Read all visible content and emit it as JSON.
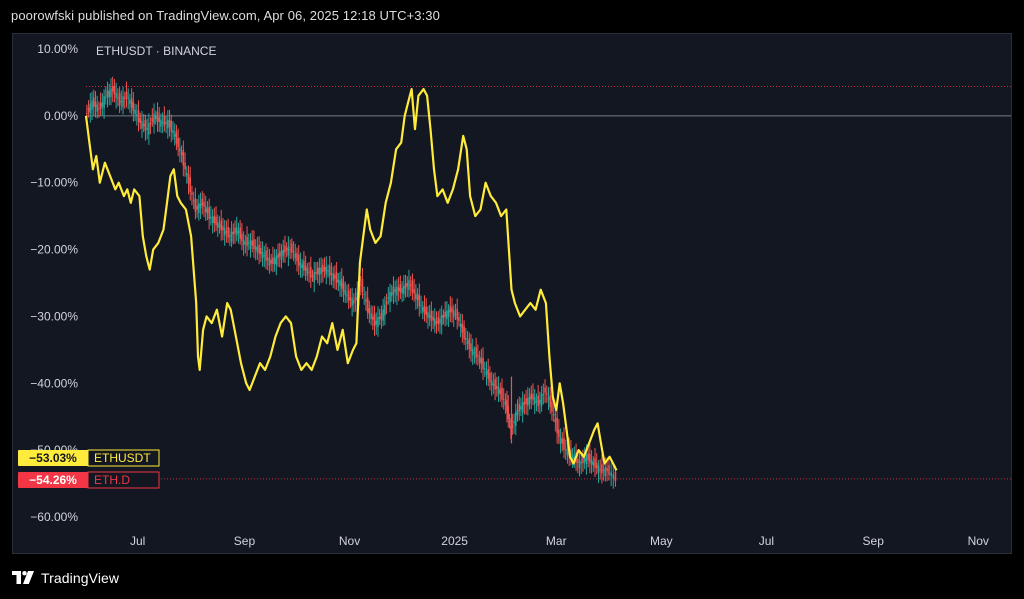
{
  "header": {
    "published_line": "poorowfski published on TradingView.com, Apr 06, 2025 12:18 UTC+3:30"
  },
  "footer": {
    "brand": "TradingView",
    "logo_icon": "tradingview-logo-icon"
  },
  "chart_data": {
    "type": "line",
    "title": "ETHUSDT · BINANCE",
    "xlabel": "",
    "ylabel": "",
    "y_unit": "percent change",
    "ylim": [
      -61,
      11
    ],
    "y_ticks": [
      "10.00%",
      "0.00%",
      "−10.00%",
      "−20.00%",
      "−30.00%",
      "−40.00%",
      "−50.00%",
      "−60.00%"
    ],
    "y_tick_values": [
      10,
      0,
      -10,
      -20,
      -30,
      -40,
      -50,
      -60
    ],
    "x_ticks": [
      "Jul",
      "Sep",
      "Nov",
      "2025",
      "Mar",
      "May",
      "Jul",
      "Sep",
      "Nov"
    ],
    "x_tick_dates": [
      "2024-07-01",
      "2024-09-01",
      "2024-11-01",
      "2025-01-01",
      "2025-03-01",
      "2025-05-01",
      "2025-07-01",
      "2025-09-01",
      "2025-11-01"
    ],
    "xlim": [
      "2024-06-01",
      "2025-11-20"
    ],
    "zero_line": 0,
    "reference_line_top": 4.4,
    "reference_line_bottom": -54.3,
    "colors": {
      "background": "#131722",
      "axis_text": "#d1d4dc",
      "yellow": "#ffeb3b",
      "candle_up": "#26a69a",
      "candle_down": "#ef5350",
      "zero_line": "#787b86",
      "ref_line": "#f23645"
    },
    "series": [
      {
        "name": "ETHUSDT",
        "style": "line",
        "color": "#ffeb3b",
        "last_label": "−53.03%",
        "data": [
          [
            "2024-06-01",
            0
          ],
          [
            "2024-06-03",
            -4
          ],
          [
            "2024-06-05",
            -8
          ],
          [
            "2024-06-07",
            -6
          ],
          [
            "2024-06-09",
            -10
          ],
          [
            "2024-06-12",
            -7
          ],
          [
            "2024-06-15",
            -9
          ],
          [
            "2024-06-18",
            -11
          ],
          [
            "2024-06-20",
            -10
          ],
          [
            "2024-06-23",
            -12
          ],
          [
            "2024-06-25",
            -11
          ],
          [
            "2024-06-27",
            -13
          ],
          [
            "2024-06-29",
            -11
          ],
          [
            "2024-07-02",
            -12
          ],
          [
            "2024-07-04",
            -18
          ],
          [
            "2024-07-06",
            -21
          ],
          [
            "2024-07-08",
            -23
          ],
          [
            "2024-07-10",
            -20
          ],
          [
            "2024-07-13",
            -19
          ],
          [
            "2024-07-16",
            -17
          ],
          [
            "2024-07-18",
            -13
          ],
          [
            "2024-07-20",
            -9
          ],
          [
            "2024-07-22",
            -8
          ],
          [
            "2024-07-24",
            -12
          ],
          [
            "2024-07-26",
            -13
          ],
          [
            "2024-07-29",
            -14
          ],
          [
            "2024-08-01",
            -18
          ],
          [
            "2024-08-04",
            -28
          ],
          [
            "2024-08-05",
            -36
          ],
          [
            "2024-08-06",
            -38
          ],
          [
            "2024-08-08",
            -32
          ],
          [
            "2024-08-10",
            -30
          ],
          [
            "2024-08-13",
            -31
          ],
          [
            "2024-08-16",
            -29
          ],
          [
            "2024-08-19",
            -33
          ],
          [
            "2024-08-22",
            -28
          ],
          [
            "2024-08-24",
            -29
          ],
          [
            "2024-08-27",
            -33
          ],
          [
            "2024-08-30",
            -37
          ],
          [
            "2024-09-02",
            -40
          ],
          [
            "2024-09-04",
            -41
          ],
          [
            "2024-09-07",
            -39
          ],
          [
            "2024-09-10",
            -37
          ],
          [
            "2024-09-13",
            -38
          ],
          [
            "2024-09-16",
            -36
          ],
          [
            "2024-09-19",
            -33
          ],
          [
            "2024-09-22",
            -31
          ],
          [
            "2024-09-25",
            -30
          ],
          [
            "2024-09-28",
            -31
          ],
          [
            "2024-10-01",
            -36
          ],
          [
            "2024-10-04",
            -38
          ],
          [
            "2024-10-07",
            -37
          ],
          [
            "2024-10-10",
            -38
          ],
          [
            "2024-10-13",
            -36
          ],
          [
            "2024-10-16",
            -33
          ],
          [
            "2024-10-19",
            -34
          ],
          [
            "2024-10-22",
            -31
          ],
          [
            "2024-10-25",
            -35
          ],
          [
            "2024-10-28",
            -32
          ],
          [
            "2024-10-31",
            -37
          ],
          [
            "2024-11-03",
            -35
          ],
          [
            "2024-11-05",
            -34
          ],
          [
            "2024-11-07",
            -22
          ],
          [
            "2024-11-09",
            -18
          ],
          [
            "2024-11-11",
            -14
          ],
          [
            "2024-11-13",
            -17
          ],
          [
            "2024-11-16",
            -19
          ],
          [
            "2024-11-19",
            -18
          ],
          [
            "2024-11-22",
            -13
          ],
          [
            "2024-11-25",
            -10
          ],
          [
            "2024-11-28",
            -5
          ],
          [
            "2024-12-01",
            -4
          ],
          [
            "2024-12-03",
            0
          ],
          [
            "2024-12-05",
            2
          ],
          [
            "2024-12-07",
            4
          ],
          [
            "2024-12-09",
            -2
          ],
          [
            "2024-12-11",
            3
          ],
          [
            "2024-12-14",
            4
          ],
          [
            "2024-12-16",
            3
          ],
          [
            "2024-12-18",
            -2
          ],
          [
            "2024-12-20",
            -8
          ],
          [
            "2024-12-22",
            -12
          ],
          [
            "2024-12-25",
            -11
          ],
          [
            "2024-12-28",
            -13
          ],
          [
            "2024-12-31",
            -11
          ],
          [
            "2025-01-03",
            -8
          ],
          [
            "2025-01-06",
            -3
          ],
          [
            "2025-01-08",
            -5
          ],
          [
            "2025-01-10",
            -12
          ],
          [
            "2025-01-13",
            -15
          ],
          [
            "2025-01-16",
            -14
          ],
          [
            "2025-01-19",
            -10
          ],
          [
            "2025-01-22",
            -12
          ],
          [
            "2025-01-25",
            -13
          ],
          [
            "2025-01-28",
            -15
          ],
          [
            "2025-01-31",
            -14
          ],
          [
            "2025-02-03",
            -26
          ],
          [
            "2025-02-05",
            -28
          ],
          [
            "2025-02-08",
            -30
          ],
          [
            "2025-02-11",
            -29
          ],
          [
            "2025-02-14",
            -28
          ],
          [
            "2025-02-17",
            -29
          ],
          [
            "2025-02-20",
            -26
          ],
          [
            "2025-02-23",
            -28
          ],
          [
            "2025-02-25",
            -36
          ],
          [
            "2025-02-27",
            -42
          ],
          [
            "2025-03-01",
            -44
          ],
          [
            "2025-03-03",
            -40
          ],
          [
            "2025-03-05",
            -43
          ],
          [
            "2025-03-07",
            -47
          ],
          [
            "2025-03-09",
            -51
          ],
          [
            "2025-03-11",
            -52
          ],
          [
            "2025-03-14",
            -50
          ],
          [
            "2025-03-17",
            -51
          ],
          [
            "2025-03-20",
            -49
          ],
          [
            "2025-03-23",
            -47
          ],
          [
            "2025-03-25",
            -46
          ],
          [
            "2025-03-27",
            -49
          ],
          [
            "2025-03-29",
            -52
          ],
          [
            "2025-04-01",
            -51
          ],
          [
            "2025-04-03",
            -52
          ],
          [
            "2025-04-05",
            -53.03
          ]
        ]
      },
      {
        "name": "ETH.D",
        "style": "candles",
        "last_label": "−54.26%",
        "data": [
          [
            "2024-06-01",
            0
          ],
          [
            "2024-06-05",
            2
          ],
          [
            "2024-06-09",
            1
          ],
          [
            "2024-06-13",
            3
          ],
          [
            "2024-06-17",
            4
          ],
          [
            "2024-06-21",
            2
          ],
          [
            "2024-06-25",
            3
          ],
          [
            "2024-06-29",
            1
          ],
          [
            "2024-07-03",
            -1
          ],
          [
            "2024-07-07",
            -2
          ],
          [
            "2024-07-11",
            0
          ],
          [
            "2024-07-15",
            -1
          ],
          [
            "2024-07-19",
            -1
          ],
          [
            "2024-07-23",
            -3
          ],
          [
            "2024-07-27",
            -6
          ],
          [
            "2024-07-31",
            -10
          ],
          [
            "2024-08-04",
            -14
          ],
          [
            "2024-08-08",
            -13
          ],
          [
            "2024-08-12",
            -15
          ],
          [
            "2024-08-16",
            -16
          ],
          [
            "2024-08-20",
            -17
          ],
          [
            "2024-08-24",
            -18
          ],
          [
            "2024-08-28",
            -17
          ],
          [
            "2024-09-01",
            -19
          ],
          [
            "2024-09-05",
            -19
          ],
          [
            "2024-09-09",
            -20
          ],
          [
            "2024-09-13",
            -21
          ],
          [
            "2024-09-17",
            -22
          ],
          [
            "2024-09-21",
            -21
          ],
          [
            "2024-09-25",
            -20
          ],
          [
            "2024-09-29",
            -20
          ],
          [
            "2024-10-03",
            -22
          ],
          [
            "2024-10-07",
            -23
          ],
          [
            "2024-10-11",
            -24
          ],
          [
            "2024-10-15",
            -23
          ],
          [
            "2024-10-19",
            -23
          ],
          [
            "2024-10-23",
            -24
          ],
          [
            "2024-10-27",
            -25
          ],
          [
            "2024-10-31",
            -27
          ],
          [
            "2024-11-04",
            -28
          ],
          [
            "2024-11-08",
            -25
          ],
          [
            "2024-11-12",
            -29
          ],
          [
            "2024-11-16",
            -31
          ],
          [
            "2024-11-20",
            -30
          ],
          [
            "2024-11-24",
            -27
          ],
          [
            "2024-11-28",
            -26
          ],
          [
            "2024-12-02",
            -26
          ],
          [
            "2024-12-06",
            -25
          ],
          [
            "2024-12-10",
            -27
          ],
          [
            "2024-12-14",
            -29
          ],
          [
            "2024-12-18",
            -30
          ],
          [
            "2024-12-22",
            -31
          ],
          [
            "2024-12-26",
            -30
          ],
          [
            "2024-12-30",
            -29
          ],
          [
            "2025-01-03",
            -30
          ],
          [
            "2025-01-07",
            -33
          ],
          [
            "2025-01-11",
            -35
          ],
          [
            "2025-01-15",
            -36
          ],
          [
            "2025-01-19",
            -38
          ],
          [
            "2025-01-23",
            -40
          ],
          [
            "2025-01-27",
            -41
          ],
          [
            "2025-01-31",
            -43
          ],
          [
            "2025-02-03",
            -47
          ],
          [
            "2025-02-07",
            -44
          ],
          [
            "2025-02-11",
            -43
          ],
          [
            "2025-02-15",
            -42
          ],
          [
            "2025-02-19",
            -43
          ],
          [
            "2025-02-23",
            -41
          ],
          [
            "2025-02-27",
            -44
          ],
          [
            "2025-03-03",
            -48
          ],
          [
            "2025-03-07",
            -50
          ],
          [
            "2025-03-11",
            -51
          ],
          [
            "2025-03-15",
            -52
          ],
          [
            "2025-03-19",
            -51
          ],
          [
            "2025-03-23",
            -52
          ],
          [
            "2025-03-27",
            -53
          ],
          [
            "2025-03-31",
            -53
          ],
          [
            "2025-04-05",
            -54.26
          ]
        ]
      }
    ]
  }
}
